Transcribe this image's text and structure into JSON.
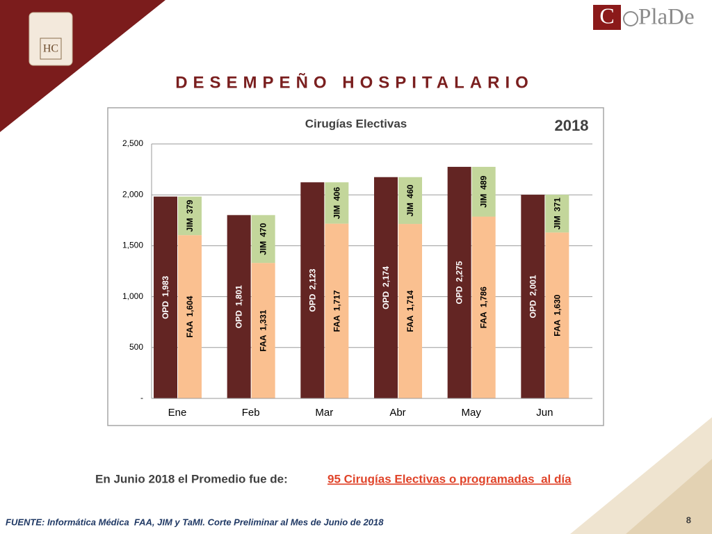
{
  "header": {
    "title": "DESEMPEÑO HOSPITALARIO",
    "logo_initial": "C",
    "logo_text": "PlaDe"
  },
  "chart_data": {
    "type": "bar",
    "title": "Cirugías Electivas",
    "subtitle": "2018",
    "categories": [
      "Ene",
      "Feb",
      "Mar",
      "Abr",
      "May",
      "Jun"
    ],
    "series": [
      {
        "name": "OPD",
        "color": "#632523",
        "values": [
          1983,
          1801,
          2123,
          2174,
          2275,
          2001
        ],
        "value_labels": [
          "1,983",
          "1,801",
          "2,123",
          "2,174",
          "2,275",
          "2,001"
        ]
      },
      {
        "name": "FAA",
        "color": "#fac090",
        "values": [
          1604,
          1331,
          1717,
          1714,
          1786,
          1630
        ],
        "value_labels": [
          "1,604",
          "1,331",
          "1,717",
          "1,714",
          "1,786",
          "1,630"
        ]
      },
      {
        "name": "JIM",
        "color": "#c3d69b",
        "values": [
          379,
          470,
          406,
          460,
          489,
          371
        ]
      }
    ],
    "ylim": [
      0,
      2500
    ],
    "yticks": [
      {
        "value": 0,
        "label": "-"
      },
      500,
      {
        "value": 1000,
        "label": "1,000"
      },
      {
        "value": 1500,
        "label": "1,500"
      },
      {
        "value": 2000,
        "label": "2,000"
      },
      {
        "value": 2500,
        "label": "2,500"
      }
    ],
    "grid": true
  },
  "footer": {
    "summary": "En Junio 2018 el Promedio fue de:",
    "highlight": "95 Cirugías Electivas o programadas  al día",
    "source": "FUENTE: Informática Médica  FAA, JIM y TaMI. Corte Preliminar al Mes de Junio de 2018",
    "page": "8"
  }
}
